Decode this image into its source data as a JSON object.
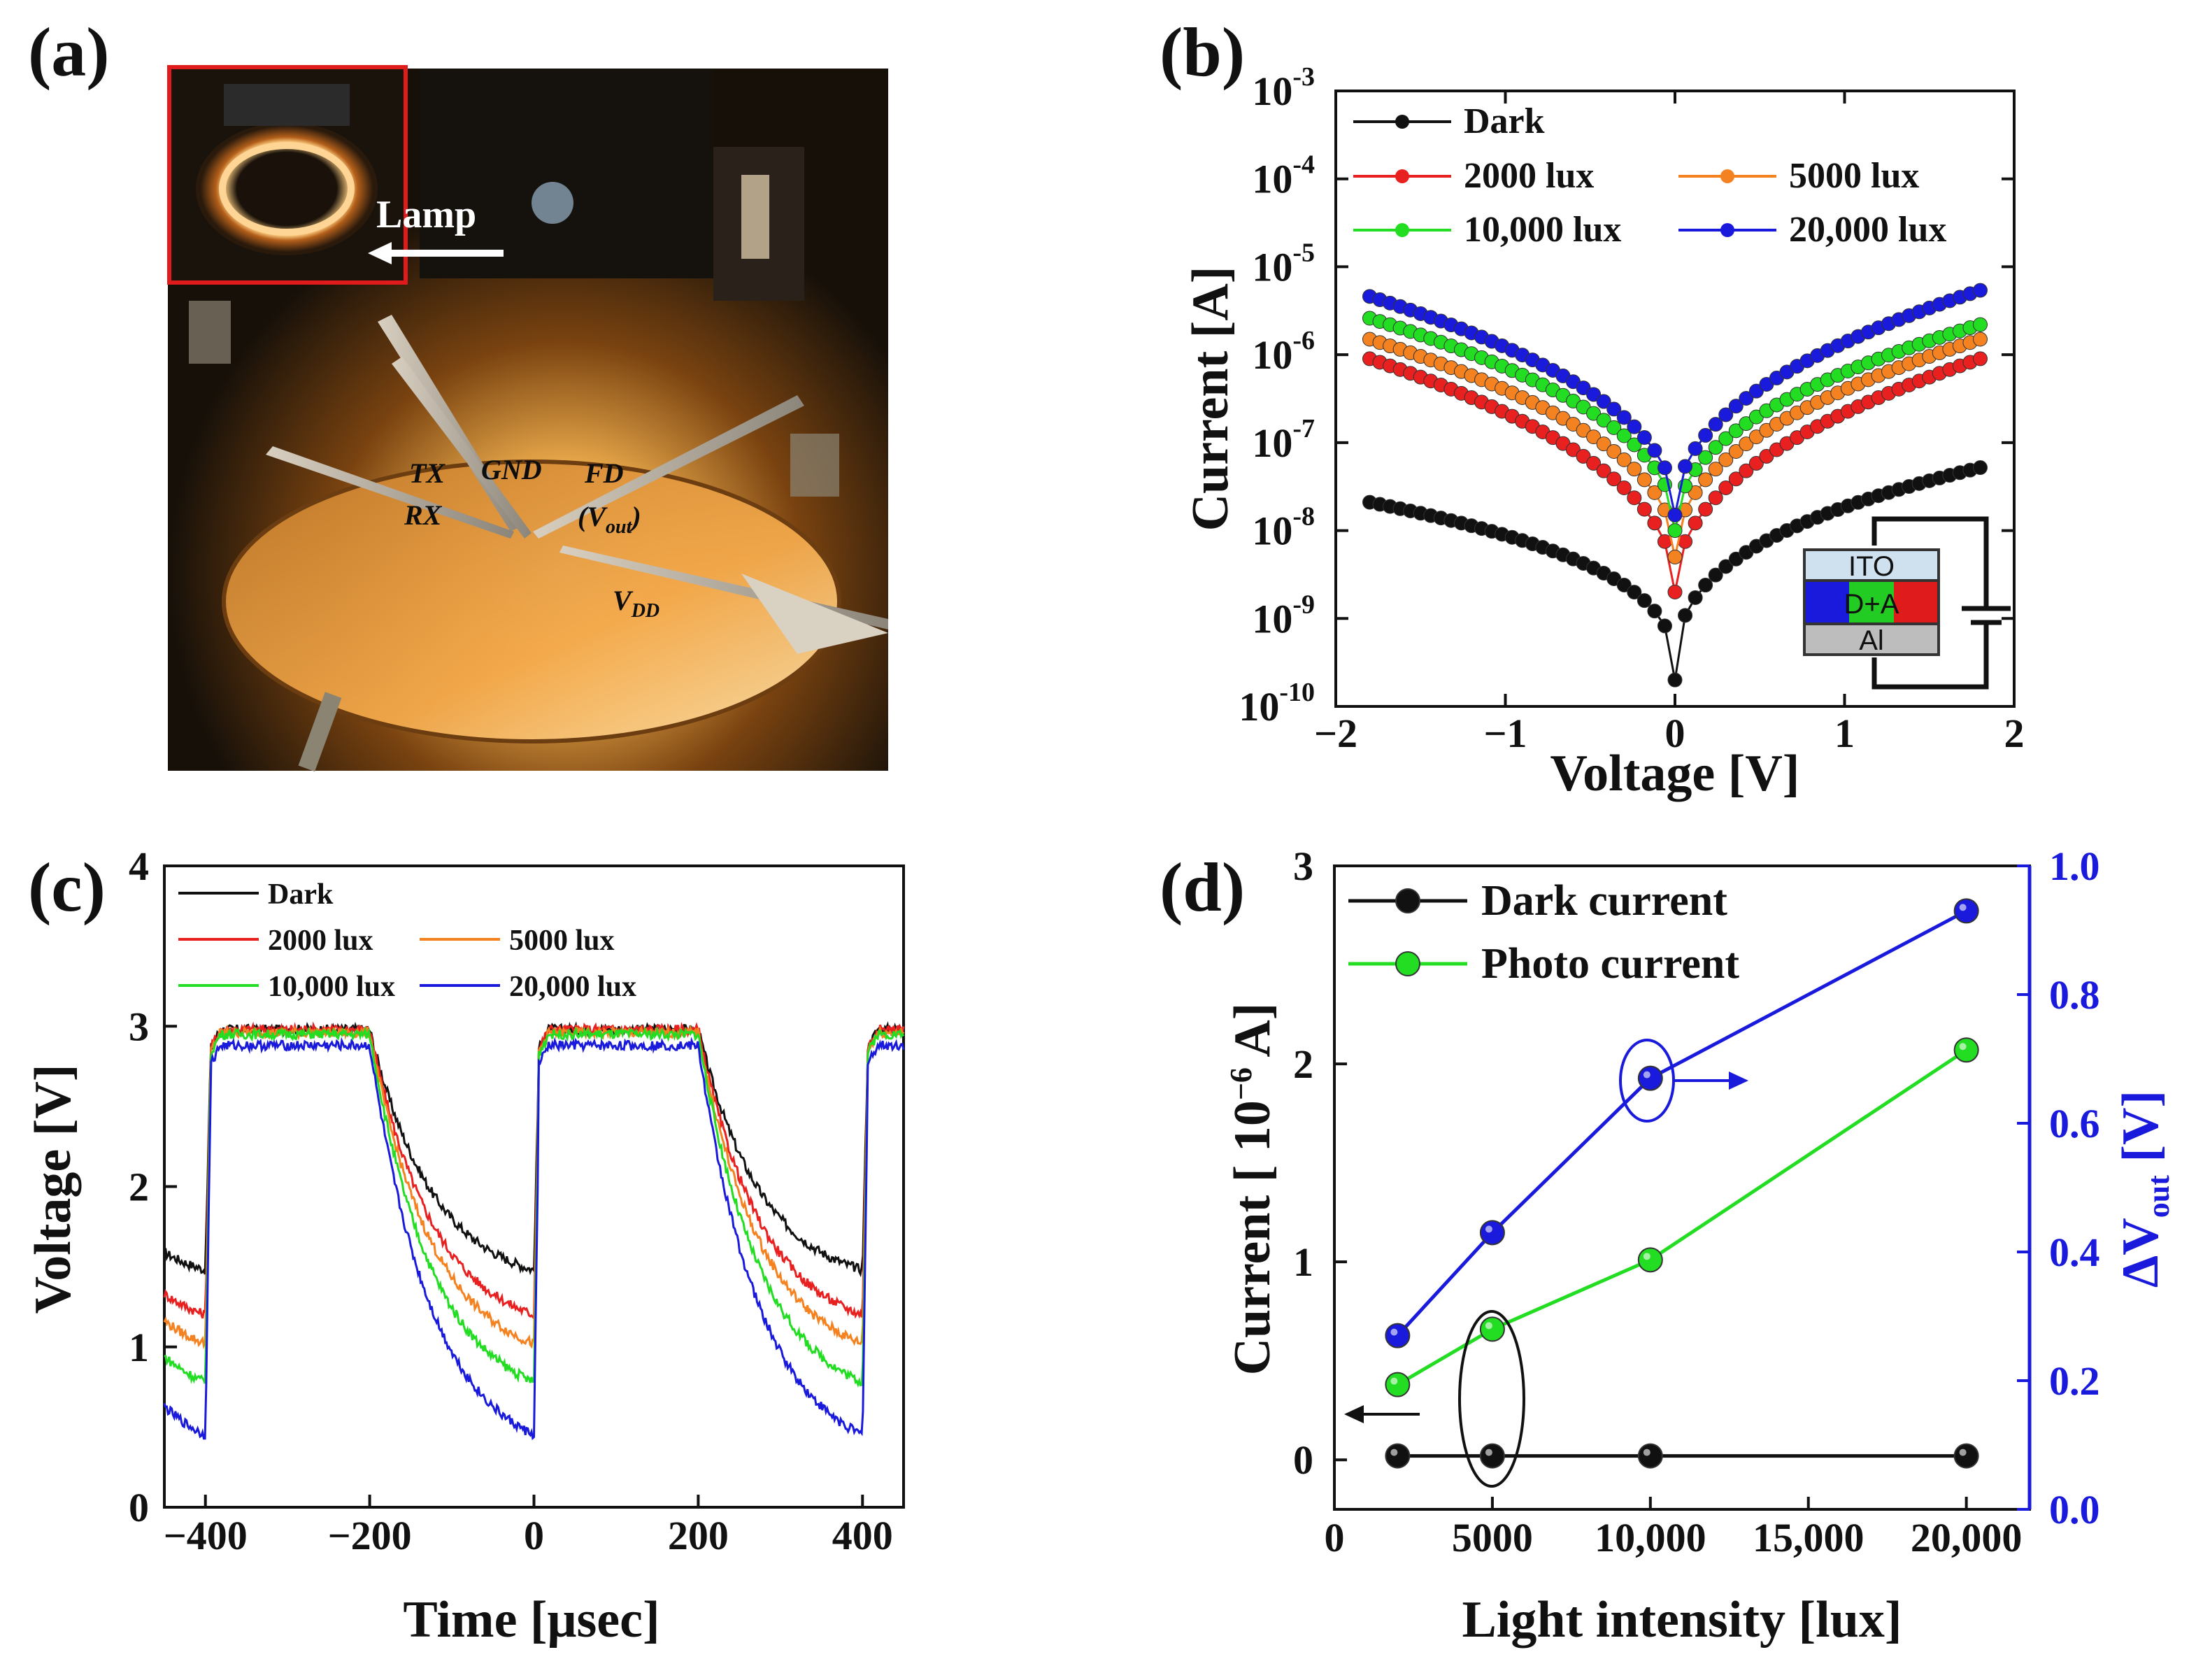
{
  "panels": {
    "a": "(a)",
    "b": "(b)",
    "c": "(c)",
    "d": "(d)"
  },
  "photo": {
    "lamp": "Lamp",
    "labels": {
      "tx": "TX",
      "rx": "RX",
      "gnd": "GND",
      "fd": "FD",
      "vout": "(V",
      "vout_sub": "out",
      "vout_close": ")",
      "vdd": "V",
      "vdd_sub": "DD"
    },
    "inset_border_color": "#e01b1b"
  },
  "inset_device": {
    "top": "ITO",
    "middle": "D+A",
    "bottom": "Al"
  },
  "colors": {
    "dark": "#111111",
    "lux2000": "#e82020",
    "lux5000": "#f58220",
    "lux10000": "#22dd22",
    "lux20000": "#1a1adc",
    "right_axis": "#1a1adc"
  },
  "chart_data": [
    {
      "id": "b",
      "type": "scatter",
      "title": "",
      "xlabel": "Voltage [V]",
      "ylabel": "Current [A]",
      "xlim": [
        -2,
        2
      ],
      "ylim_log10": [
        -10,
        -3
      ],
      "yscale": "log",
      "xticks": [
        -2,
        -1,
        0,
        1,
        2
      ],
      "xtick_labels": [
        "−2",
        "−1",
        "0",
        "1",
        "2"
      ],
      "ytick_exponents": [
        -3,
        -4,
        -5,
        -6,
        -7,
        -8,
        -9,
        -10
      ],
      "legend": [
        "Dark",
        "2000 lux",
        "5000 lux",
        "10,000 lux",
        "20,000 lux"
      ],
      "series_model": [
        {
          "name": "Dark",
          "color_key": "dark",
          "left_at_-1.8V": 2.1e-08,
          "right_at_1.8V": 5.2e-08,
          "min": 2e-10
        },
        {
          "name": "2000 lux",
          "color_key": "lux2000",
          "left_at_-1.8V": 9e-07,
          "right_at_1.8V": 9e-07,
          "min": 2e-09
        },
        {
          "name": "5000 lux",
          "color_key": "lux5000",
          "left_at_-1.8V": 1.5e-06,
          "right_at_1.8V": 1.5e-06,
          "min": 5e-09
        },
        {
          "name": "10,000 lux",
          "color_key": "lux10000",
          "left_at_-1.8V": 2.6e-06,
          "right_at_1.8V": 2.2e-06,
          "min": 1e-08
        },
        {
          "name": "20,000 lux",
          "color_key": "lux20000",
          "left_at_-1.8V": 4.6e-06,
          "right_at_1.8V": 5.4e-06,
          "min": 1.5e-08
        }
      ]
    },
    {
      "id": "c",
      "type": "line",
      "xlabel": "Time [μsec]",
      "ylabel": "Voltage [V]",
      "xlim": [
        -450,
        450
      ],
      "ylim": [
        0,
        4
      ],
      "xticks": [
        -400,
        -200,
        0,
        200,
        400
      ],
      "xtick_labels": [
        "−400",
        "−200",
        "0",
        "200",
        "400"
      ],
      "yticks": [
        0,
        1,
        2,
        3,
        4
      ],
      "legend": [
        "Dark",
        "2000 lux",
        "5000 lux",
        "10,000 lux",
        "20,000 lux"
      ],
      "series": [
        {
          "name": "Dark",
          "color_key": "dark",
          "high": 2.98,
          "low_end": 1.48
        },
        {
          "name": "2000 lux",
          "color_key": "lux2000",
          "high": 2.98,
          "low_end": 1.2
        },
        {
          "name": "5000 lux",
          "color_key": "lux5000",
          "high": 2.96,
          "low_end": 1.02
        },
        {
          "name": "10,000 lux",
          "color_key": "lux10000",
          "high": 2.95,
          "low_end": 0.78
        },
        {
          "name": "20,000 lux",
          "color_key": "lux20000",
          "high": 2.88,
          "low_end": 0.45
        }
      ]
    },
    {
      "id": "d",
      "type": "line",
      "xlabel": "Light intensity [lux]",
      "ylabel": "Current [ 10^-6 A]",
      "ylabel_parts": [
        "Current [ 10",
        "−6",
        " A]"
      ],
      "y2label_parts": [
        "ΔV",
        "out",
        " [V]"
      ],
      "xlim": [
        0,
        22000
      ],
      "ylim": [
        -0.25,
        3
      ],
      "y2lim": [
        0,
        1.0
      ],
      "xticks": [
        0,
        5000,
        10000,
        15000,
        20000
      ],
      "xtick_labels": [
        "0",
        "5000",
        "10,000",
        "15,000",
        "20,000"
      ],
      "yticks": [
        0,
        1,
        2,
        3
      ],
      "y2ticks": [
        0.0,
        0.2,
        0.4,
        0.6,
        0.8,
        1.0
      ],
      "y2tick_labels": [
        "0.0",
        "0.2",
        "0.4",
        "0.6",
        "0.8",
        "1.0"
      ],
      "x": [
        2000,
        5000,
        10000,
        20000
      ],
      "series": [
        {
          "name": "Dark current",
          "axis": "left",
          "color_key": "dark",
          "values": [
            0.02,
            0.02,
            0.02,
            0.02
          ]
        },
        {
          "name": "Photo current",
          "axis": "left",
          "color_key": "lux10000",
          "values": [
            0.38,
            0.66,
            1.01,
            2.07
          ]
        },
        {
          "name": "ΔVout",
          "axis": "right",
          "color_key": "lux20000",
          "values": [
            0.27,
            0.43,
            0.67,
            0.93
          ]
        }
      ],
      "legend": [
        "Dark current",
        "Photo current"
      ]
    }
  ]
}
